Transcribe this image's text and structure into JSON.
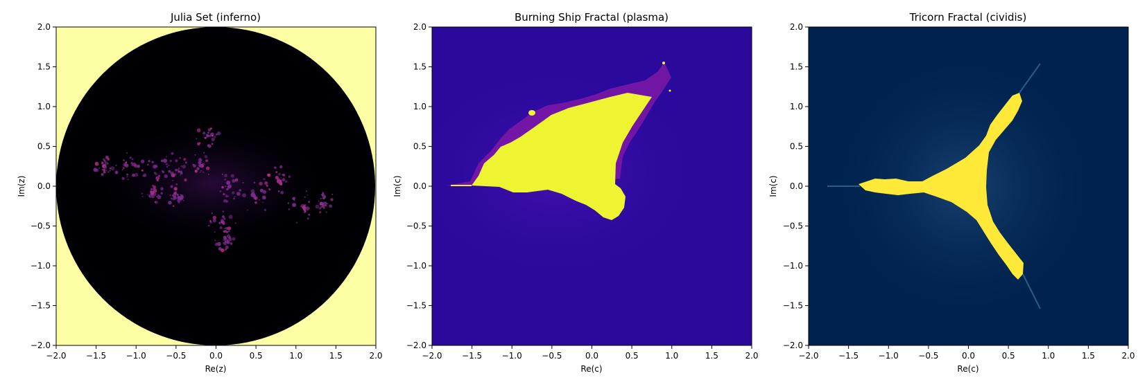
{
  "figure": {
    "background": "#ffffff"
  },
  "chart_data": [
    {
      "type": "heatmap",
      "title": "Julia Set (inferno)",
      "xlabel": "Re(z)",
      "ylabel": "Im(z)",
      "xlim": [
        -2.0,
        2.0
      ],
      "ylim": [
        -2.0,
        2.0
      ],
      "xticks": [
        "−2.0",
        "−1.5",
        "−1.0",
        "−0.5",
        "0.0",
        "0.5",
        "1.0",
        "1.5",
        "2.0"
      ],
      "yticks": [
        "−2.0",
        "−1.5",
        "−1.0",
        "−0.5",
        "0.0",
        "0.5",
        "1.0",
        "1.5",
        "2.0"
      ],
      "colormap": "inferno",
      "colors": {
        "background": "#fcffa4",
        "interior": "#000004",
        "set": "#7a2a8c",
        "glow": "#b83289"
      }
    },
    {
      "type": "heatmap",
      "title": "Burning Ship Fractal (plasma)",
      "xlabel": "Re(c)",
      "ylabel": "Im(c)",
      "xlim": [
        -2.0,
        2.0
      ],
      "ylim": [
        -2.0,
        2.0
      ],
      "xticks": [
        "−2.0",
        "−1.5",
        "−1.0",
        "−0.5",
        "0.0",
        "0.5",
        "1.0",
        "1.5",
        "2.0"
      ],
      "yticks": [
        "−2.0",
        "−1.5",
        "−1.0",
        "−0.5",
        "0.0",
        "0.5",
        "1.0",
        "1.5",
        "2.0"
      ],
      "colormap": "plasma",
      "colors": {
        "background": "#2a0a9c",
        "set": "#eef332",
        "edge": "#8a1aa8"
      }
    },
    {
      "type": "heatmap",
      "title": "Tricorn Fractal (cividis)",
      "xlabel": "Re(c)",
      "ylabel": "Im(c)",
      "xlim": [
        -2.0,
        2.0
      ],
      "ylim": [
        -2.0,
        2.0
      ],
      "xticks": [
        "−2.0",
        "−1.5",
        "−1.0",
        "−0.5",
        "0.0",
        "0.5",
        "1.0",
        "1.5",
        "2.0"
      ],
      "yticks": [
        "−2.0",
        "−1.5",
        "−1.0",
        "−0.5",
        "0.0",
        "0.5",
        "1.0",
        "1.5",
        "2.0"
      ],
      "colormap": "cividis",
      "colors": {
        "background": "#00224e",
        "set": "#fee838",
        "edge": "#1f4a7a"
      }
    }
  ]
}
